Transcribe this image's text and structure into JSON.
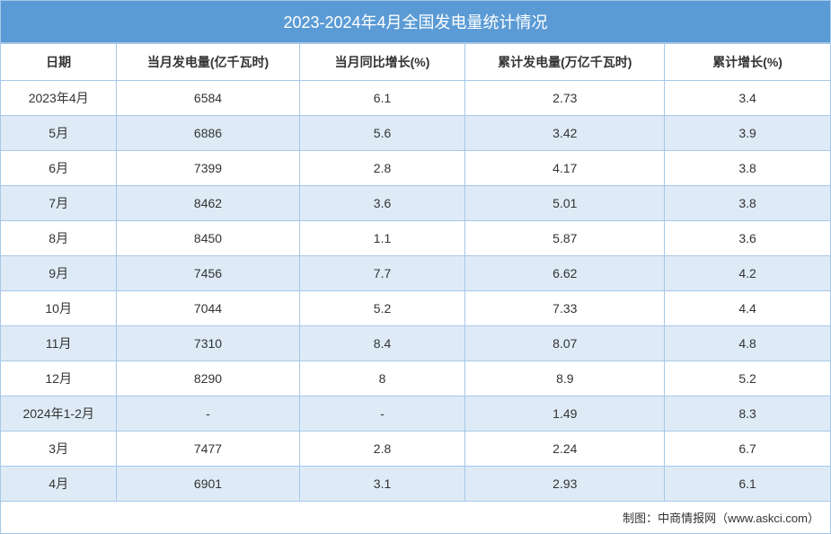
{
  "title": "2023-2024年4月全国发电量统计情况",
  "columns": [
    "日期",
    "当月发电量(亿千瓦时)",
    "当月同比增长(%)",
    "累计发电量(万亿千瓦时)",
    "累计增长(%)"
  ],
  "rows": [
    [
      "2023年4月",
      "6584",
      "6.1",
      "2.73",
      "3.4"
    ],
    [
      "5月",
      "6886",
      "5.6",
      "3.42",
      "3.9"
    ],
    [
      "6月",
      "7399",
      "2.8",
      "4.17",
      "3.8"
    ],
    [
      "7月",
      "8462",
      "3.6",
      "5.01",
      "3.8"
    ],
    [
      "8月",
      "8450",
      "1.1",
      "5.87",
      "3.6"
    ],
    [
      "9月",
      "7456",
      "7.7",
      "6.62",
      "4.2"
    ],
    [
      "10月",
      "7044",
      "5.2",
      "7.33",
      "4.4"
    ],
    [
      "11月",
      "7310",
      "8.4",
      "8.07",
      "4.8"
    ],
    [
      "12月",
      "8290",
      "8",
      "8.9",
      "5.2"
    ],
    [
      "2024年1-2月",
      "-",
      "-",
      "1.49",
      "8.3"
    ],
    [
      "3月",
      "7477",
      "2.8",
      "2.24",
      "6.7"
    ],
    [
      "4月",
      "6901",
      "3.1",
      "2.93",
      "6.1"
    ]
  ],
  "footer": "制图：中商情报网（www.askci.com）",
  "styling": {
    "title_bg": "#5b9bd5",
    "title_color": "#ffffff",
    "title_fontsize": 18,
    "header_bg": "#ffffff",
    "header_fontsize": 14,
    "header_fontweight": "bold",
    "cell_fontsize": 14,
    "odd_row_bg": "#ffffff",
    "even_row_bg": "#deebf7",
    "border_color": "#a6c8e8",
    "text_color": "#333333",
    "footer_fontsize": 13,
    "column_widths": [
      "14%",
      "22%",
      "20%",
      "24%",
      "20%"
    ]
  }
}
